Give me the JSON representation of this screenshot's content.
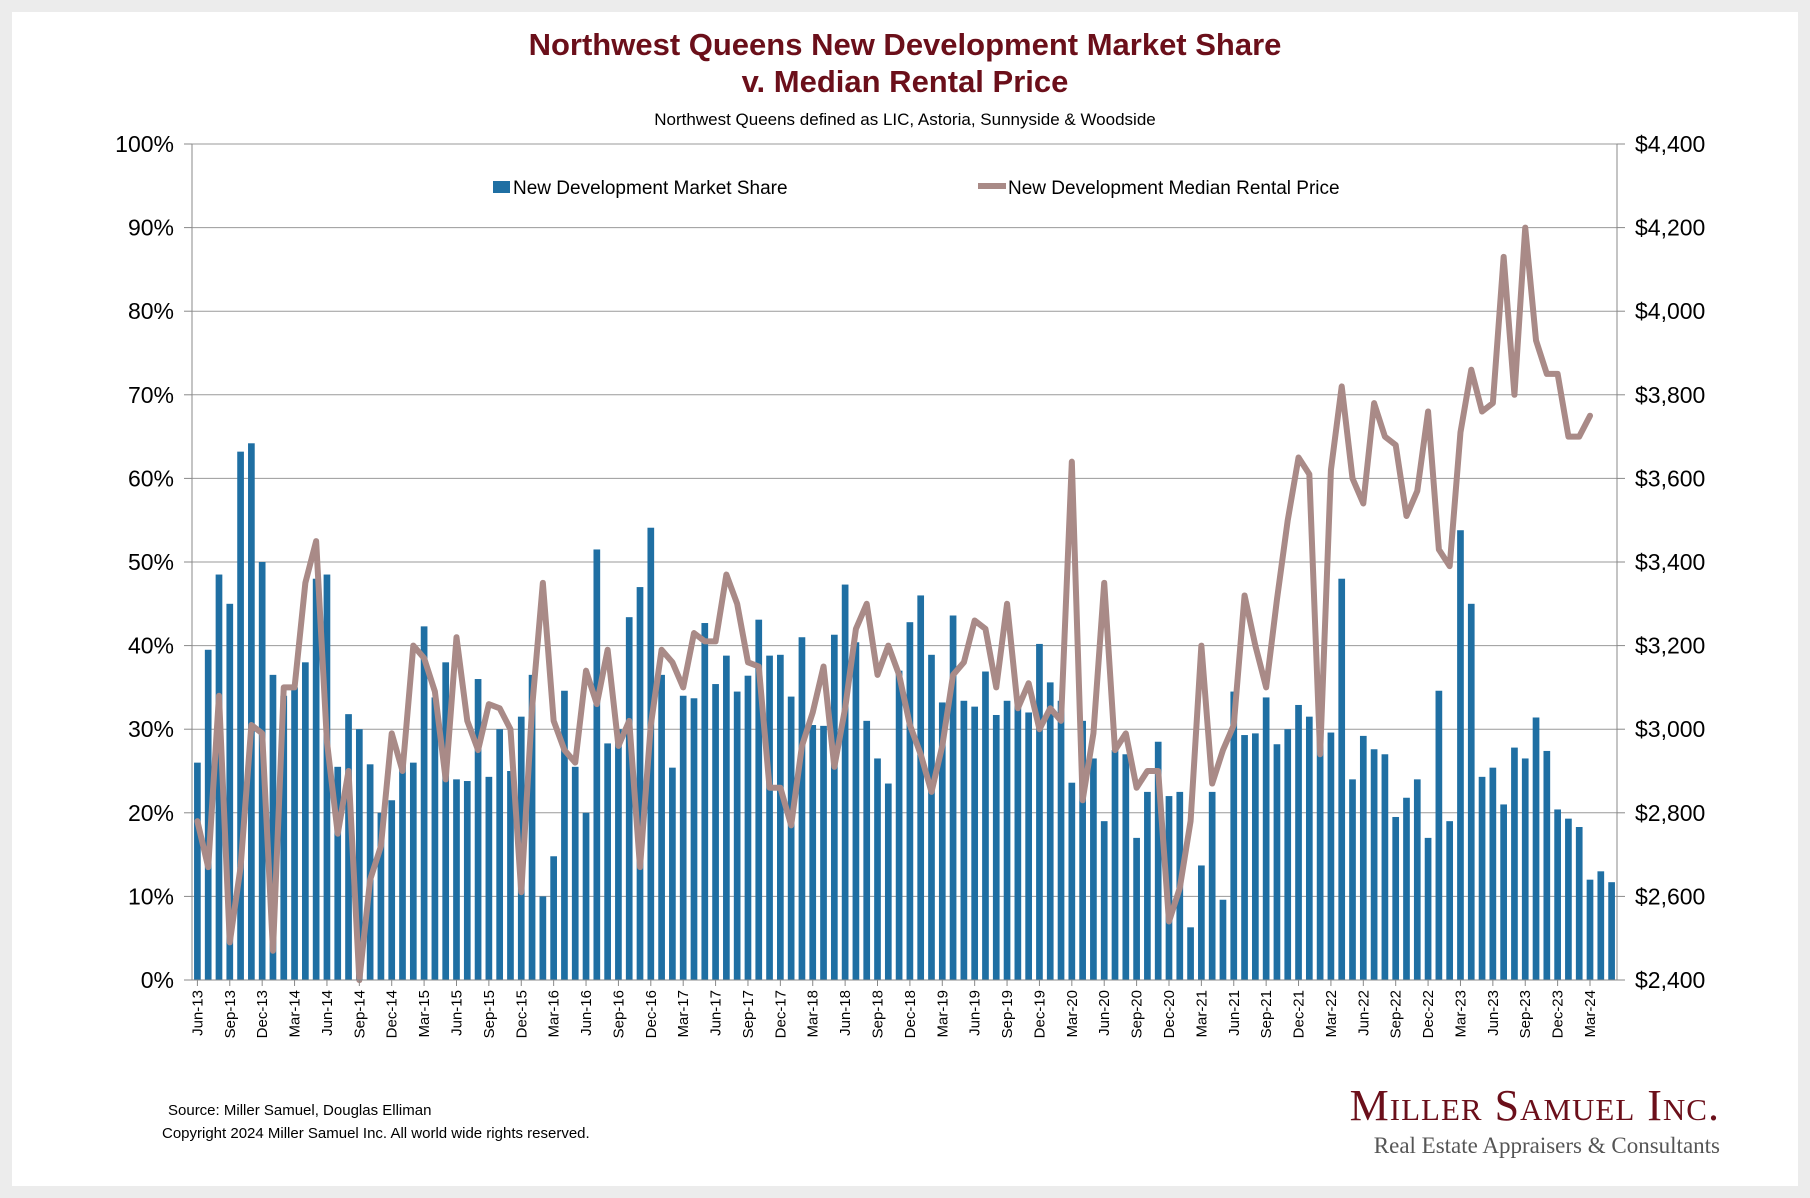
{
  "title_line1": "Northwest Queens New Development Market Share",
  "title_line2": "v. Median Rental Price",
  "subtitle": "Northwest Queens defined as LIC, Astoria, Sunnyside & Woodside",
  "source": "Source: Miller Samuel, Douglas Elliman",
  "copyright": "Copyright 2024 Miller Samuel Inc.  All world wide rights reserved.",
  "brand": {
    "name": "Miller Samuel Inc.",
    "tagline": "Real Estate Appraisers & Consultants"
  },
  "colors": {
    "bar": "#1f6fa3",
    "line": "#a98a87",
    "grid": "#9a9a9a",
    "title": "#6b0f1a"
  },
  "chart_data": {
    "type": "bar",
    "legend": [
      "New Development Market Share",
      "New Development Median Rental Price"
    ],
    "legend_position": "top",
    "grid": true,
    "ylim_left": [
      0,
      100
    ],
    "ylim_right": [
      2400,
      4400
    ],
    "left_ticks": [
      "0%",
      "10%",
      "20%",
      "30%",
      "40%",
      "50%",
      "60%",
      "70%",
      "80%",
      "90%",
      "100%"
    ],
    "right_ticks": [
      "$2,400",
      "$2,600",
      "$2,800",
      "$3,000",
      "$3,200",
      "$3,400",
      "$3,600",
      "$3,800",
      "$4,000",
      "$4,200",
      "$4,400"
    ],
    "x_tick_labels": [
      "Jun-13",
      "Sep-13",
      "Dec-13",
      "Mar-14",
      "Jun-14",
      "Sep-14",
      "Dec-14",
      "Mar-15",
      "Jun-15",
      "Sep-15",
      "Dec-15",
      "Mar-16",
      "Jun-16",
      "Sep-16",
      "Dec-16",
      "Mar-17",
      "Jun-17",
      "Sep-17",
      "Dec-17",
      "Mar-18",
      "Jun-18",
      "Sep-18",
      "Dec-18",
      "Mar-19",
      "Jun-19",
      "Sep-19",
      "Dec-19",
      "Mar-20",
      "Jun-20",
      "Sep-20",
      "Dec-20",
      "Mar-21",
      "Jun-21",
      "Sep-21",
      "Dec-21",
      "Mar-22",
      "Jun-22",
      "Sep-22",
      "Dec-22",
      "Mar-23",
      "Jun-23",
      "Sep-23",
      "Dec-23",
      "Mar-24"
    ],
    "first_month": "Jun-13",
    "series": [
      {
        "name": "New Development Market Share",
        "type": "bar",
        "axis": "left",
        "values": [
          26,
          39.5,
          48.5,
          45,
          63.2,
          64.2,
          50,
          36.5,
          34,
          35,
          38,
          48,
          48.5,
          25.5,
          31.8,
          30,
          25.8,
          20,
          21.5,
          26,
          26,
          42.3,
          33.8,
          38,
          24,
          23.8,
          36,
          24.3,
          30,
          25,
          31.5,
          36.5,
          10,
          14.8,
          34.6,
          25.5,
          20,
          51.5,
          28.3,
          30,
          43.4,
          47,
          54.1,
          36.5,
          25.4,
          34,
          33.7,
          42.7,
          35.4,
          38.8,
          34.5,
          36.4,
          43.1,
          38.8,
          38.9,
          33.9,
          41,
          30.5,
          30.4,
          41.3,
          47.3,
          40.4,
          31,
          26.5,
          23.5,
          37,
          42.8,
          46,
          38.9,
          33.2,
          43.6,
          33.4,
          32.7,
          36.9,
          31.7,
          33.4,
          33.4,
          32,
          40.2,
          35.6,
          33.4,
          23.6,
          31,
          26.5,
          19,
          27.5,
          27,
          17,
          22.5,
          28.5,
          22,
          22.5,
          6.3,
          13.7,
          22.5,
          9.6,
          34.5,
          29.3,
          29.5,
          33.8,
          28.2,
          30,
          32.9,
          31.5,
          36.2,
          29.6,
          48,
          24,
          29.2,
          27.6,
          27,
          19.5,
          21.8,
          24,
          17,
          34.6,
          19,
          53.8,
          45,
          24.3,
          25.4,
          21,
          27.8,
          26.5,
          31.4,
          27.4,
          20.4,
          19.3,
          18.3,
          12,
          13,
          11.7
        ]
      },
      {
        "name": "New Development Median Rental Price",
        "type": "line",
        "axis": "right",
        "values": [
          2780,
          2670,
          3080,
          2490,
          2670,
          3010,
          2990,
          2470,
          3100,
          3100,
          3350,
          3450,
          2970,
          2750,
          2900,
          2400,
          2640,
          2720,
          2990,
          2900,
          3200,
          3170,
          3090,
          2880,
          3220,
          3020,
          2950,
          3060,
          3050,
          3000,
          2610,
          3050,
          3350,
          3020,
          2950,
          2920,
          3140,
          3060,
          3190,
          2960,
          3020,
          2670,
          3010,
          3190,
          3160,
          3100,
          3230,
          3210,
          3210,
          3370,
          3300,
          3160,
          3150,
          2860,
          2860,
          2770,
          2960,
          3040,
          3150,
          2910,
          3050,
          3240,
          3300,
          3130,
          3200,
          3130,
          3010,
          2940,
          2850,
          2960,
          3130,
          3160,
          3260,
          3240,
          3100,
          3300,
          3050,
          3110,
          3000,
          3050,
          3020,
          3640,
          2830,
          2990,
          3350,
          2950,
          2990,
          2860,
          2900,
          2900,
          2540,
          2620,
          2780,
          3200,
          2870,
          2950,
          3010,
          3320,
          3200,
          3100,
          3310,
          3500,
          3650,
          3610,
          2940,
          3620,
          3820,
          3600,
          3540,
          3780,
          3700,
          3680,
          3510,
          3570,
          3760,
          3430,
          3390,
          3710,
          3860,
          3760,
          3780,
          4130,
          3800,
          4200,
          3930,
          3850,
          3850,
          3700,
          3700,
          3750
        ]
      }
    ]
  }
}
